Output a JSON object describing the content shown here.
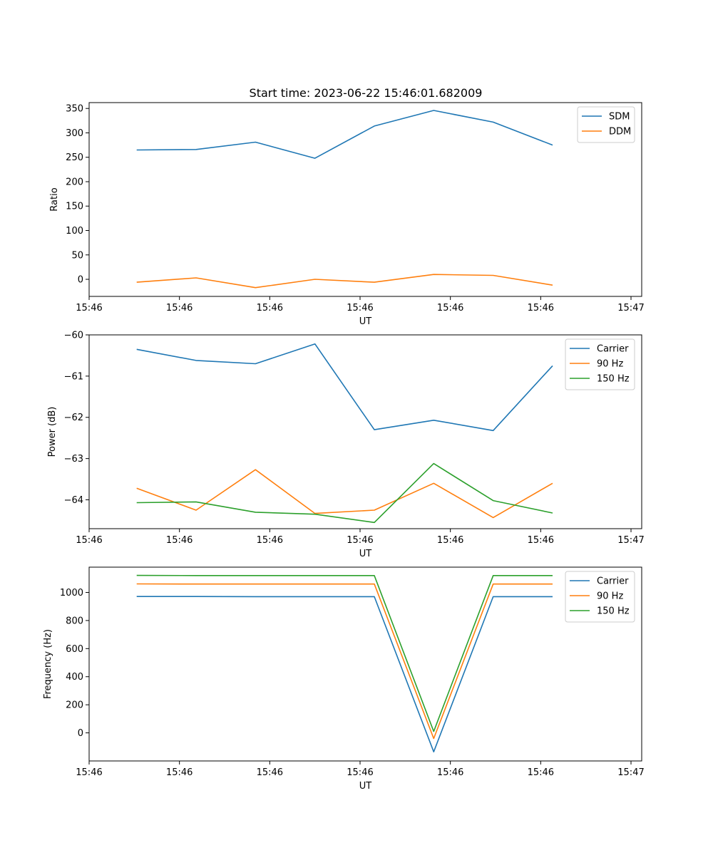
{
  "title": "Start time: 2023-06-22 15:46:01.682009",
  "colors": {
    "blue": "#1f77b4",
    "orange": "#ff7f0e",
    "green": "#2ca02c",
    "legend_border": "#cccccc",
    "axes": "#000000"
  },
  "chart_data": [
    {
      "type": "line",
      "title": "Start time: 2023-06-22 15:46:01.682009",
      "xlabel": "UT",
      "ylabel": "Ratio",
      "x": [
        1,
        2,
        3,
        4,
        5,
        6,
        7,
        8
      ],
      "xlim": [
        0.2,
        9.5
      ],
      "ylim": [
        -35,
        362
      ],
      "xticks": [
        0.2,
        1.72,
        3.24,
        4.76,
        6.28,
        7.8,
        9.32
      ],
      "xtick_labels": [
        "15:46",
        "15:46",
        "15:46",
        "15:46",
        "15:46",
        "15:46",
        "15:47"
      ],
      "yticks": [
        0,
        50,
        100,
        150,
        200,
        250,
        300,
        350
      ],
      "ytick_labels": [
        "0",
        "50",
        "100",
        "150",
        "200",
        "250",
        "300",
        "350"
      ],
      "legend": "top-right",
      "grid": false,
      "series": [
        {
          "name": "SDM",
          "color": "#1f77b4",
          "values": [
            265,
            266,
            281,
            248,
            314,
            346,
            322,
            275
          ]
        },
        {
          "name": "DDM",
          "color": "#ff7f0e",
          "values": [
            -6,
            3,
            -17,
            0,
            -6,
            10,
            8,
            -12
          ]
        }
      ]
    },
    {
      "type": "line",
      "xlabel": "UT",
      "ylabel": "Power (dB)",
      "x": [
        1,
        2,
        3,
        4,
        5,
        6,
        7,
        8
      ],
      "xlim": [
        0.2,
        9.5
      ],
      "ylim": [
        -64.7,
        -60
      ],
      "xticks": [
        0.2,
        1.72,
        3.24,
        4.76,
        6.28,
        7.8,
        9.32
      ],
      "xtick_labels": [
        "15:46",
        "15:46",
        "15:46",
        "15:46",
        "15:46",
        "15:46",
        "15:47"
      ],
      "yticks": [
        -64,
        -63,
        -62,
        -61,
        -60
      ],
      "ytick_labels": [
        "−64",
        "−63",
        "−62",
        "−61",
        "−60"
      ],
      "legend": "top-right",
      "grid": false,
      "series": [
        {
          "name": "Carrier",
          "color": "#1f77b4",
          "values": [
            -60.35,
            -60.62,
            -60.7,
            -60.22,
            -62.3,
            -62.07,
            -62.32,
            -60.75
          ]
        },
        {
          "name": "90 Hz",
          "color": "#ff7f0e",
          "values": [
            -63.72,
            -64.25,
            -63.27,
            -64.33,
            -64.25,
            -63.6,
            -64.43,
            -63.6
          ]
        },
        {
          "name": "150 Hz",
          "color": "#2ca02c",
          "values": [
            -64.07,
            -64.05,
            -64.3,
            -64.35,
            -64.55,
            -63.12,
            -64.02,
            -64.32
          ]
        }
      ]
    },
    {
      "type": "line",
      "xlabel": "UT",
      "ylabel": "Frequency (Hz)",
      "x": [
        1,
        2,
        3,
        4,
        5,
        6,
        7,
        8
      ],
      "xlim": [
        0.2,
        9.5
      ],
      "ylim": [
        -200,
        1180
      ],
      "xticks": [
        0.2,
        1.72,
        3.24,
        4.76,
        6.28,
        7.8,
        9.32
      ],
      "xtick_labels": [
        "15:46",
        "15:46",
        "15:46",
        "15:46",
        "15:46",
        "15:46",
        "15:47"
      ],
      "yticks": [
        0,
        200,
        400,
        600,
        800,
        1000
      ],
      "ytick_labels": [
        "0",
        "200",
        "400",
        "600",
        "800",
        "1000"
      ],
      "legend": "top-right",
      "grid": false,
      "series": [
        {
          "name": "Carrier",
          "color": "#1f77b4",
          "values": [
            971,
            971,
            970,
            970,
            970,
            -135,
            970,
            970
          ]
        },
        {
          "name": "90 Hz",
          "color": "#ff7f0e",
          "values": [
            1061,
            1060,
            1060,
            1060,
            1060,
            -40,
            1060,
            1060
          ]
        },
        {
          "name": "150 Hz",
          "color": "#2ca02c",
          "values": [
            1121,
            1120,
            1120,
            1120,
            1120,
            10,
            1120,
            1120
          ]
        }
      ]
    }
  ]
}
